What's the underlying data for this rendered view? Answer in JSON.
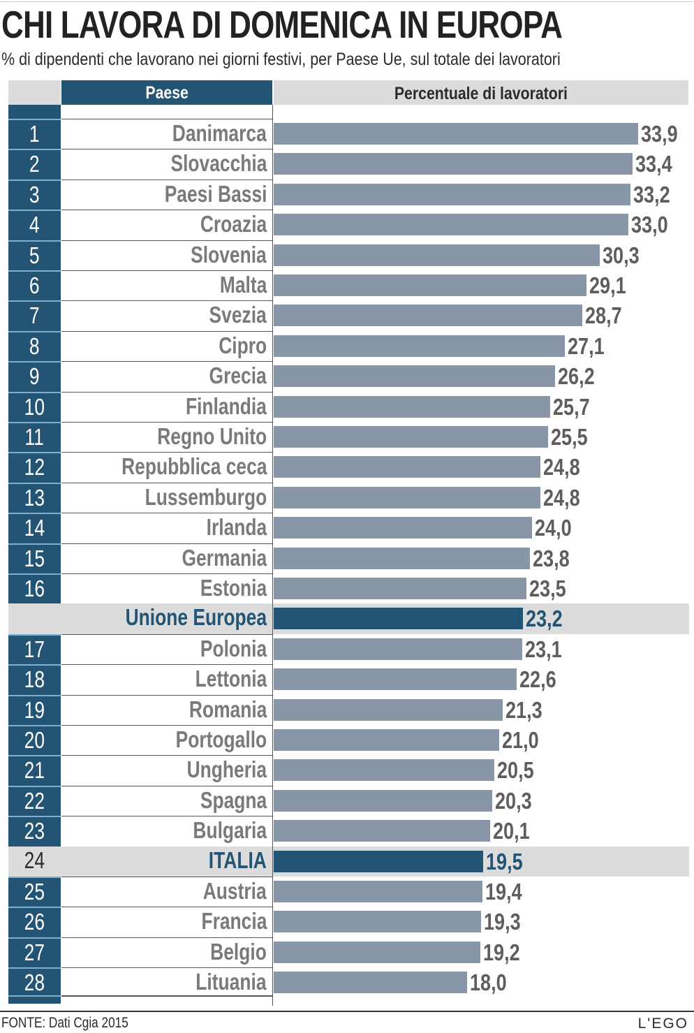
{
  "header": {
    "title": "CHI LAVORA DI DOMENICA IN EUROPA",
    "subtitle": "% di dipendenti che lavorano nei giorni festivi, per Paese Ue, sul totale dei lavoratori"
  },
  "table": {
    "col_country": "Paese",
    "col_percent": "Percentuale di lavoratori"
  },
  "footer": {
    "source": "FONTE: Dati Cgia 2015",
    "logo": "L'EGO"
  },
  "colors": {
    "primary_navy": "#245473",
    "bar_gray": "#8996a8",
    "highlight_band": "#dcdcdc",
    "name_gray": "#7a7a7a"
  },
  "chart_data": {
    "type": "bar",
    "orientation": "horizontal",
    "title": "CHI LAVORA DI DOMENICA IN EUROPA",
    "subtitle": "% di dipendenti che lavorano nei giorni festivi, per Paese Ue, sul totale dei lavoratori",
    "xlabel": "Percentuale di lavoratori",
    "ylabel": "Paese",
    "xlim": [
      0,
      33.9
    ],
    "grid": false,
    "legend": "none",
    "rows": [
      {
        "rank": "1",
        "country": "Danimarca",
        "value": 33.9,
        "label": "33,9"
      },
      {
        "rank": "2",
        "country": "Slovacchia",
        "value": 33.4,
        "label": "33,4"
      },
      {
        "rank": "3",
        "country": "Paesi Bassi",
        "value": 33.2,
        "label": "33,2"
      },
      {
        "rank": "4",
        "country": "Croazia",
        "value": 33.0,
        "label": "33,0"
      },
      {
        "rank": "5",
        "country": "Slovenia",
        "value": 30.3,
        "label": "30,3"
      },
      {
        "rank": "6",
        "country": "Malta",
        "value": 29.1,
        "label": "29,1"
      },
      {
        "rank": "7",
        "country": "Svezia",
        "value": 28.7,
        "label": "28,7"
      },
      {
        "rank": "8",
        "country": "Cipro",
        "value": 27.1,
        "label": "27,1"
      },
      {
        "rank": "9",
        "country": "Grecia",
        "value": 26.2,
        "label": "26,2"
      },
      {
        "rank": "10",
        "country": "Finlandia",
        "value": 25.7,
        "label": "25,7"
      },
      {
        "rank": "11",
        "country": "Regno Unito",
        "value": 25.5,
        "label": "25,5"
      },
      {
        "rank": "12",
        "country": "Repubblica ceca",
        "value": 24.8,
        "label": "24,8"
      },
      {
        "rank": "13",
        "country": "Lussemburgo",
        "value": 24.8,
        "label": "24,8"
      },
      {
        "rank": "14",
        "country": "Irlanda",
        "value": 24.0,
        "label": "24,0"
      },
      {
        "rank": "15",
        "country": "Germania",
        "value": 23.8,
        "label": "23,8"
      },
      {
        "rank": "16",
        "country": "Estonia",
        "value": 23.5,
        "label": "23,5"
      },
      {
        "rank": "",
        "country": "Unione Europea (28)",
        "value": 23.2,
        "label": "23,2",
        "highlight": "eu"
      },
      {
        "rank": "17",
        "country": "Polonia",
        "value": 23.1,
        "label": "23,1"
      },
      {
        "rank": "18",
        "country": "Lettonia",
        "value": 22.6,
        "label": "22,6"
      },
      {
        "rank": "19",
        "country": "Romania",
        "value": 21.3,
        "label": "21,3"
      },
      {
        "rank": "20",
        "country": "Portogallo",
        "value": 21.0,
        "label": "21,0"
      },
      {
        "rank": "21",
        "country": "Ungheria",
        "value": 20.5,
        "label": "20,5"
      },
      {
        "rank": "22",
        "country": "Spagna",
        "value": 20.3,
        "label": "20,3"
      },
      {
        "rank": "23",
        "country": "Bulgaria",
        "value": 20.1,
        "label": "20,1"
      },
      {
        "rank": "24",
        "country": "ITALIA",
        "value": 19.5,
        "label": "19,5",
        "highlight": "italy"
      },
      {
        "rank": "25",
        "country": "Austria",
        "value": 19.4,
        "label": "19,4"
      },
      {
        "rank": "26",
        "country": "Francia",
        "value": 19.3,
        "label": "19,3"
      },
      {
        "rank": "27",
        "country": "Belgio",
        "value": 19.2,
        "label": "19,2"
      },
      {
        "rank": "28",
        "country": "Lituania",
        "value": 18.0,
        "label": "18,0"
      }
    ]
  }
}
